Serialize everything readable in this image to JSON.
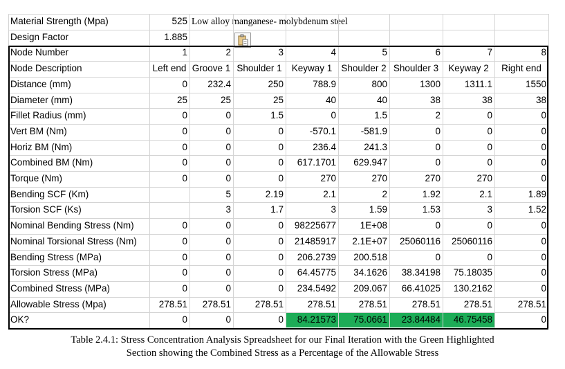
{
  "header_rows": [
    {
      "label": "Material Strength (Mpa)",
      "value": "525",
      "note": "Low alloy manganese- molybdenum steel"
    },
    {
      "label": "Design Factor",
      "value": "1.885"
    }
  ],
  "node_number_label": "Node Number",
  "node_numbers": [
    "1",
    "2",
    "3",
    "4",
    "5",
    "6",
    "7",
    "8"
  ],
  "node_description_label": "Node Description",
  "node_descriptions": [
    "Left end",
    "Groove 1",
    "Shoulder 1",
    "Keyway 1",
    "Shoulder 2",
    "Shoulder 3",
    "Keyway 2",
    "Right end"
  ],
  "rows": [
    {
      "label": "Distance (mm)",
      "values": [
        "0",
        "232.4",
        "250",
        "788.9",
        "800",
        "1300",
        "1311.1",
        "1550"
      ]
    },
    {
      "label": "Diameter (mm)",
      "values": [
        "25",
        "25",
        "25",
        "40",
        "40",
        "38",
        "38",
        "38"
      ]
    },
    {
      "label": "Fillet Radius (mm)",
      "values": [
        "0",
        "0",
        "1.5",
        "0",
        "1.5",
        "2",
        "0",
        "0"
      ]
    },
    {
      "label": "Vert BM (Nm)",
      "values": [
        "0",
        "0",
        "0",
        "-570.1",
        "-581.9",
        "0",
        "0",
        "0"
      ]
    },
    {
      "label": "Horiz BM (Nm)",
      "values": [
        "0",
        "0",
        "0",
        "236.4",
        "241.3",
        "0",
        "0",
        "0"
      ]
    },
    {
      "label": "Combined BM (Nm)",
      "values": [
        "0",
        "0",
        "0",
        "617.1701",
        "629.947",
        "0",
        "0",
        "0"
      ]
    },
    {
      "label": "Torque (Nm)",
      "values": [
        "0",
        "0",
        "0",
        "270",
        "270",
        "270",
        "270",
        "0"
      ]
    },
    {
      "label": "Bending SCF (Km)",
      "values": [
        "",
        "5",
        "2.19",
        "2.1",
        "2",
        "1.92",
        "2.1",
        "1.89"
      ]
    },
    {
      "label": "Torsion SCF (Ks)",
      "values": [
        "",
        "3",
        "1.7",
        "3",
        "1.59",
        "1.53",
        "3",
        "1.52"
      ]
    },
    {
      "label": "Nominal Bending Stress (Nm)",
      "values": [
        "0",
        "0",
        "0",
        "98225677",
        "1E+08",
        "0",
        "0",
        "0"
      ]
    },
    {
      "label": "Nominal Torsional Stress (Nm)",
      "values": [
        "0",
        "0",
        "0",
        "21485917",
        "2.1E+07",
        "25060116",
        "25060116",
        "0"
      ]
    },
    {
      "label": "Bending Stress (MPa)",
      "values": [
        "0",
        "0",
        "0",
        "206.2739",
        "200.518",
        "0",
        "0",
        "0"
      ]
    },
    {
      "label": "Torsion Stress (MPa)",
      "values": [
        "0",
        "0",
        "0",
        "64.45775",
        "34.1626",
        "38.34198",
        "75.18035",
        "0"
      ]
    },
    {
      "label": "Combined Stress (MPa)",
      "values": [
        "0",
        "0",
        "0",
        "234.5492",
        "209.067",
        "66.41025",
        "130.2162",
        "0"
      ]
    },
    {
      "label": "Allowable Stress (Mpa)",
      "values": [
        "278.51",
        "278.51",
        "278.51",
        "278.51",
        "278.51",
        "278.51",
        "278.51",
        "278.51"
      ]
    },
    {
      "label": "OK?",
      "values": [
        "0",
        "0",
        "0",
        "84.21573",
        "75.0661",
        "23.84484",
        "46.75458",
        "0"
      ],
      "highlight": [
        false,
        false,
        false,
        true,
        true,
        true,
        true,
        false
      ]
    }
  ],
  "colors": {
    "highlight": "#1dac57",
    "grid": "#d4d4d4"
  },
  "paste_icon": "clipboard-paste-icon",
  "caption_line1": "Table 2.4.1: Stress Concentration Analysis Spreadsheet for our Final Iteration with the Green Highlighted",
  "caption_line2": "Section showing the Combined Stress as a Percentage of the Allowable Stress"
}
